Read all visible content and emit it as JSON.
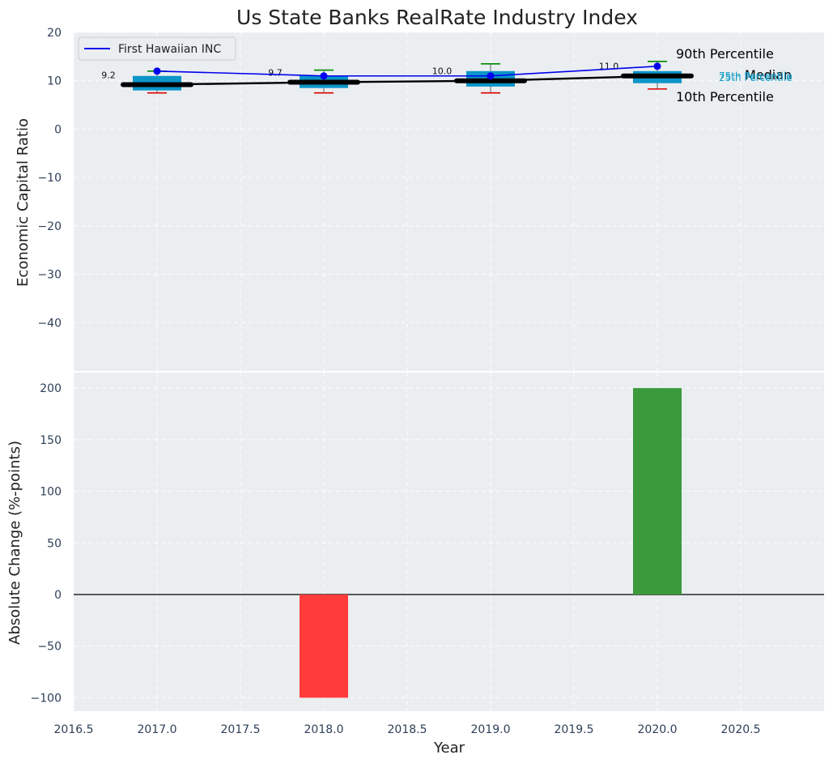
{
  "chart_data": [
    {
      "type": "box",
      "title": "Us State Banks RealRate Industry Index",
      "xlabel": "",
      "ylabel": "Economic Capital Ratio",
      "ylim": [
        -50,
        20
      ],
      "xlim": [
        2016.5,
        2021.0
      ],
      "yticks": [
        20,
        10,
        0,
        -10,
        -20,
        -30,
        -40
      ],
      "ytick_labels": [
        "20",
        "10",
        "0",
        "−10",
        "−20",
        "−30",
        "−40"
      ],
      "grid": true,
      "legend": {
        "position": "top-left",
        "entries": [
          "First Hawaiian INC"
        ]
      },
      "boxes": [
        {
          "x": 2017,
          "p10": 7.5,
          "p25": 8.0,
          "median": 9.2,
          "p75": 11.0,
          "p90": 12.0
        },
        {
          "x": 2018,
          "p10": 7.5,
          "p25": 8.5,
          "median": 9.7,
          "p75": 11.0,
          "p90": 12.2
        },
        {
          "x": 2019,
          "p10": 7.5,
          "p25": 8.8,
          "median": 10.0,
          "p75": 12.0,
          "p90": 13.5
        },
        {
          "x": 2020,
          "p10": 8.3,
          "p25": 9.5,
          "median": 11.0,
          "p75": 12.0,
          "p90": 14.0
        }
      ],
      "median_labels": [
        "9.2",
        "9.7",
        "10.0",
        "11.0"
      ],
      "series": [
        {
          "name": "First Hawaiian INC",
          "x": [
            2017,
            2018,
            2019,
            2020
          ],
          "values": [
            12.0,
            11.0,
            11.0,
            13.0
          ],
          "color": "#0000ee"
        },
        {
          "name": "Median",
          "x": [
            2017,
            2018,
            2019,
            2020
          ],
          "values": [
            9.2,
            9.7,
            10.0,
            11.0
          ],
          "color": "#000000"
        }
      ],
      "side_labels": {
        "p90": "90th Percentile",
        "median": "Median",
        "p10": "10th Percentile",
        "p75": "75th Percentile",
        "p25": "25th Percentile"
      },
      "colors": {
        "box": "#0b95c9",
        "p90": "#008800",
        "p10": "#dd0000",
        "company": "#0000ee",
        "median": "#000000"
      }
    },
    {
      "type": "bar",
      "title": "",
      "xlabel": "Year",
      "ylabel": "Absolute Change (%-points)",
      "ylim": [
        -113,
        215
      ],
      "xlim": [
        2016.5,
        2021.0
      ],
      "yticks": [
        200,
        150,
        100,
        50,
        0,
        -50,
        -100
      ],
      "ytick_labels": [
        "200",
        "150",
        "100",
        "50",
        "0",
        "−50",
        "−100"
      ],
      "xticks": [
        2016.5,
        2017.0,
        2017.5,
        2018.0,
        2018.5,
        2019.0,
        2019.5,
        2020.0,
        2020.5
      ],
      "xtick_labels": [
        "2016.5",
        "2017.0",
        "2017.5",
        "2018.0",
        "2018.5",
        "2019.0",
        "2019.5",
        "2020.0",
        "2020.5"
      ],
      "x": [
        2018,
        2020
      ],
      "values": [
        -100,
        200
      ],
      "bar_colors": [
        "#ff3b3b",
        "#3a9a3c"
      ],
      "grid": true
    }
  ]
}
